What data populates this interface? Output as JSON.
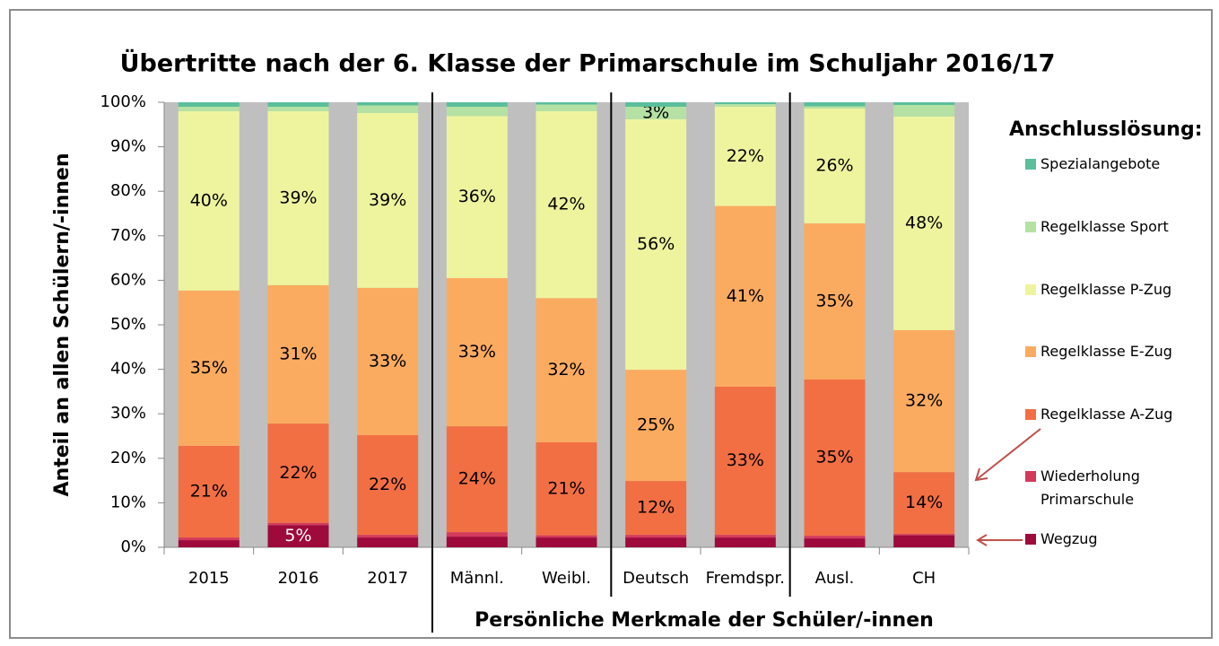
{
  "chart_data": {
    "type": "stacked_bar",
    "title": "Übertritte nach der 6. Klasse der Primarschule im Schuljahr 2016/17",
    "y_label": "Anteil an allen Schülern/-innen",
    "x_label": "Persönliche Merkmale der Schüler/-innen",
    "legend_title": "Anschlusslösung:",
    "categories": [
      "2015",
      "2016",
      "2017",
      "Männl.",
      "Weibl.",
      "Deutsch",
      "Fremdspr.",
      "Ausl.",
      "CH"
    ],
    "ylim": [
      0,
      100
    ],
    "yticks": [
      {
        "value": 0,
        "label": "0%"
      },
      {
        "value": 10,
        "label": "10%"
      },
      {
        "value": 20,
        "label": "20%"
      },
      {
        "value": 30,
        "label": "30%"
      },
      {
        "value": 40,
        "label": "40%"
      },
      {
        "value": 50,
        "label": "50%"
      },
      {
        "value": 60,
        "label": "60%"
      },
      {
        "value": 70,
        "label": "70%"
      },
      {
        "value": 80,
        "label": "80%"
      },
      {
        "value": 90,
        "label": "90%"
      },
      {
        "value": 100,
        "label": "100%"
      }
    ],
    "series": [
      {
        "name": "Wegzug",
        "color": "#9e0a3c",
        "values": [
          1.6,
          5,
          2.2,
          2.4,
          2.2,
          2.2,
          2.2,
          2,
          2.7
        ],
        "value_labels": [
          null,
          "5%",
          null,
          null,
          null,
          null,
          null,
          null,
          null
        ]
      },
      {
        "name": "Wiederholung Primarschule",
        "color": "#d43a5c",
        "values": [
          0.6,
          0.5,
          0.6,
          1,
          0.5,
          0.6,
          0.6,
          0.6,
          0.3
        ]
      },
      {
        "name": "Regelklasse A-Zug",
        "color": "#f26f44",
        "values": [
          20.6,
          22.3,
          22.4,
          23.8,
          20.9,
          12.1,
          33.3,
          35.1,
          13.9
        ],
        "value_labels": [
          "21%",
          "22%",
          "22%",
          "24%",
          "21%",
          "12%",
          "33%",
          "35%",
          "14%"
        ]
      },
      {
        "name": "Regelklasse E-Zug",
        "color": "#fbab60",
        "values": [
          34.9,
          31.1,
          33.1,
          33.3,
          32.4,
          25,
          40.6,
          35.1,
          31.9
        ],
        "value_labels": [
          "35%",
          "31%",
          "33%",
          "33%",
          "32%",
          "25%",
          "41%",
          "35%",
          "32%"
        ]
      },
      {
        "name": "Regelklasse P-Zug",
        "color": "#eef49e",
        "values": [
          40.3,
          39.1,
          39.3,
          36.4,
          42,
          56.3,
          22.3,
          25.8,
          48
        ],
        "value_labels": [
          "40%",
          "39%",
          "39%",
          "36%",
          "42%",
          "56%",
          "22%",
          "26%",
          "48%"
        ]
      },
      {
        "name": "Regelklasse Sport",
        "color": "#b5e2a4",
        "values": [
          1,
          1,
          1.7,
          2.1,
          1.5,
          2.8,
          0.6,
          0.5,
          2.6
        ],
        "value_labels": [
          null,
          null,
          null,
          null,
          null,
          "3%",
          null,
          null,
          null
        ]
      },
      {
        "name": "Spezialangebote",
        "color": "#5abf9a",
        "values": [
          1,
          1,
          0.7,
          1,
          0.5,
          1,
          0.4,
          0.9,
          0.6
        ]
      }
    ]
  }
}
